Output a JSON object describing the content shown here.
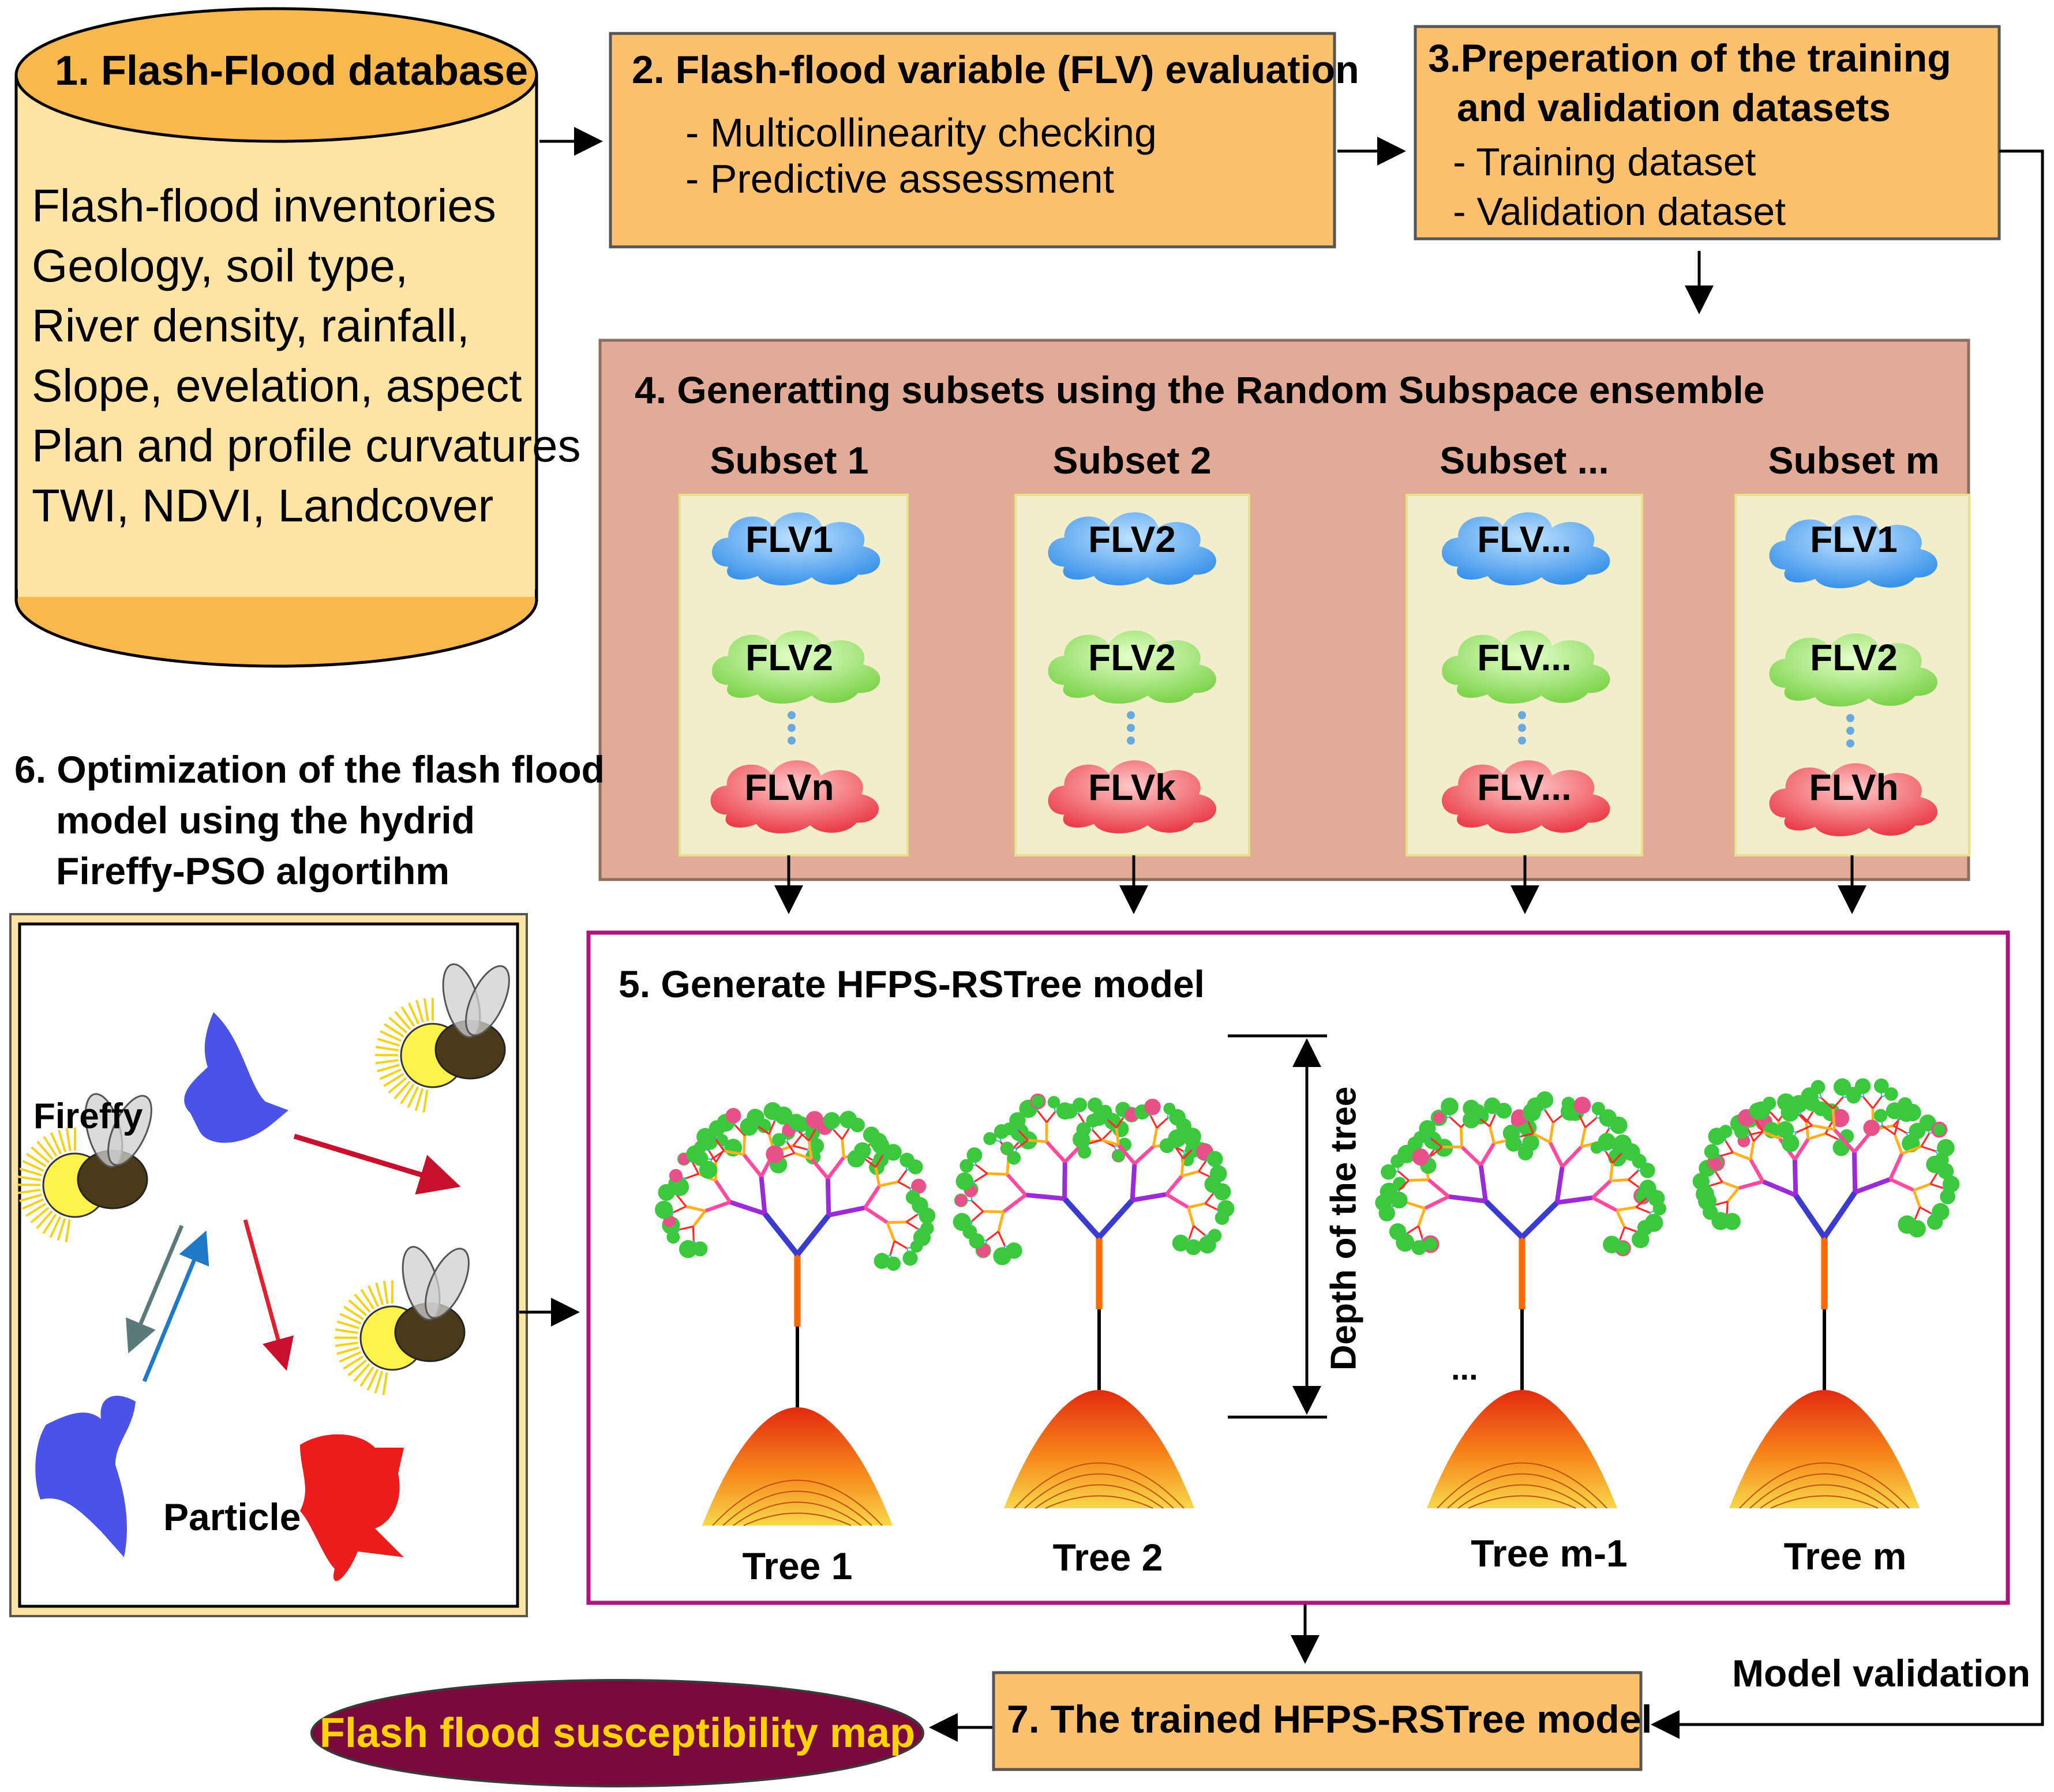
{
  "step1": {
    "title": "1. Flash-Flood database",
    "lines": [
      "Flash-flood inventories",
      "Geology, soil type,",
      "River density, rainfall,",
      "Slope, evelation, aspect",
      "Plan and profile curvatures",
      "TWI, NDVI, Landcover"
    ]
  },
  "step2": {
    "title": "2. Flash-flood variable (FLV) evaluation",
    "lines": [
      "- Multicollinearity checking",
      "- Predictive assessment"
    ]
  },
  "step3": {
    "title_line1": "3.Preperation of the training",
    "title_line2": "and validation datasets",
    "lines": [
      "- Training dataset",
      "- Validation dataset"
    ]
  },
  "step4": {
    "title": "4. Generatting subsets using the Random Subspace ensemble",
    "subsets": [
      {
        "name": "Subset 1",
        "flv_top": "FLV1",
        "flv_mid": "FLV2",
        "flv_bot": "FLVn"
      },
      {
        "name": "Subset 2",
        "flv_top": "FLV2",
        "flv_mid": "FLV2",
        "flv_bot": "FLVk"
      },
      {
        "name": "Subset ...",
        "flv_top": "FLV...",
        "flv_mid": "FLV...",
        "flv_bot": "FLV..."
      },
      {
        "name": "Subset m",
        "flv_top": "FLV1",
        "flv_mid": "FLV2",
        "flv_bot": "FLVh"
      }
    ]
  },
  "step5": {
    "title": "5. Generate HFPS-RSTree model",
    "trees": [
      "Tree 1",
      "Tree 2",
      "Tree m-1",
      "Tree m"
    ],
    "depth_label": "Depth of the tree",
    "ellipsis": "..."
  },
  "step6": {
    "title_lines": [
      "6. Optimization of the flash flood",
      "model using the hydrid",
      "Fireffy-PSO algortihm"
    ],
    "firefly_label": "Fireffy",
    "particle_label": "Particle"
  },
  "step7": {
    "title": "7. The trained HFPS-RSTree model"
  },
  "model_validation": "Model validation",
  "output": {
    "label": "Flash flood susceptibility map"
  },
  "colors": {
    "box_orange": "#fdc16d",
    "box_ensemble": "#e2ab98",
    "subset_bg": "#f2edcb",
    "flv_blue": "#3a93ea",
    "flv_green": "#8fe060",
    "flv_red": "#f0505a",
    "frame_magenta": "#b0137a",
    "output_fill": "#7a0a3c",
    "output_text": "#ffd200"
  }
}
